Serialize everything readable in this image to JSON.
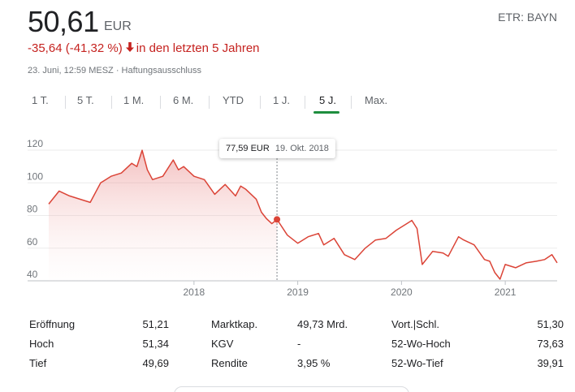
{
  "quote": {
    "price": "50,61",
    "currency": "EUR",
    "ticker": "ETR: BAYN",
    "change": "-35,64 (-41,32 %)",
    "change_period": "in den letzten 5 Jahren",
    "timestamp": "23. Juni, 12:59 MESZ · Haftungsausschluss",
    "change_color": "#c5221f"
  },
  "tabs": [
    {
      "label": "1 T.",
      "active": false
    },
    {
      "label": "5 T.",
      "active": false
    },
    {
      "label": "1 M.",
      "active": false
    },
    {
      "label": "6 M.",
      "active": false
    },
    {
      "label": "YTD",
      "active": false
    },
    {
      "label": "1 J.",
      "active": false
    },
    {
      "label": "5 J.",
      "active": true
    },
    {
      "label": "Max.",
      "active": false
    }
  ],
  "tooltip": {
    "value": "77,59 EUR",
    "date": "19. Okt. 2018"
  },
  "chart_data": {
    "type": "area",
    "y_ticks": [
      "120",
      "100",
      "80",
      "60",
      "40"
    ],
    "x_ticks": [
      "2018",
      "2019",
      "2020",
      "2021"
    ],
    "ylim": [
      40,
      125
    ],
    "xlim": [
      2016.6,
      2021.5
    ],
    "line_color": "#db4437",
    "grid": true,
    "x": [
      2016.6,
      2016.7,
      2016.8,
      2016.9,
      2017.0,
      2017.1,
      2017.2,
      2017.3,
      2017.4,
      2017.45,
      2017.5,
      2017.55,
      2017.6,
      2017.7,
      2017.8,
      2017.85,
      2017.9,
      2018.0,
      2018.1,
      2018.2,
      2018.25,
      2018.3,
      2018.4,
      2018.45,
      2018.5,
      2018.6,
      2018.65,
      2018.7,
      2018.75,
      2018.8,
      2018.9,
      2019.0,
      2019.1,
      2019.2,
      2019.25,
      2019.35,
      2019.45,
      2019.55,
      2019.65,
      2019.75,
      2019.85,
      2019.95,
      2020.05,
      2020.1,
      2020.15,
      2020.2,
      2020.3,
      2020.4,
      2020.45,
      2020.55,
      2020.6,
      2020.7,
      2020.8,
      2020.85,
      2020.9,
      2020.95,
      2021.0,
      2021.1,
      2021.2,
      2021.3,
      2021.38,
      2021.45,
      2021.5
    ],
    "values": [
      87,
      95,
      92,
      90,
      88,
      100,
      104,
      106,
      112,
      110,
      120,
      108,
      102,
      104,
      114,
      108,
      110,
      104,
      102,
      93,
      96,
      99,
      92,
      98,
      96,
      90,
      82,
      78,
      75,
      77.59,
      68,
      63,
      67,
      69,
      62,
      66,
      56,
      53,
      60,
      65,
      66,
      71,
      75,
      77,
      72,
      50,
      58,
      57,
      55,
      67,
      65,
      62,
      53,
      52,
      45,
      41,
      50,
      48,
      51,
      52,
      53,
      56,
      51
    ],
    "highlight": {
      "x": 2018.8,
      "y": 77.59
    }
  },
  "stats": [
    {
      "label": "Eröffnung",
      "value": "51,21"
    },
    {
      "label": "Hoch",
      "value": "51,34"
    },
    {
      "label": "Tief",
      "value": "49,69"
    },
    {
      "label": "Marktkap.",
      "value": "49,73 Mrd."
    },
    {
      "label": "KGV",
      "value": "-"
    },
    {
      "label": "Rendite",
      "value": "3,95 %"
    },
    {
      "label": "Vort.|Schl.",
      "value": "51,30"
    },
    {
      "label": "52-Wo-Hoch",
      "value": "73,63"
    },
    {
      "label": "52-Wo-Tief",
      "value": "39,91"
    }
  ]
}
